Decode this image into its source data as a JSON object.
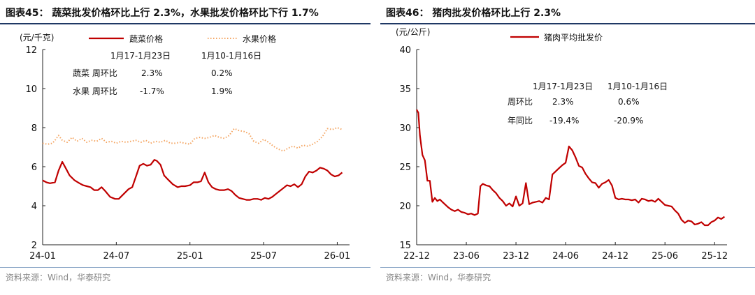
{
  "left": {
    "figure_title": "图表45： 蔬菜批发价格环比上行 2.3%，水果批发价格环比下行 1.7%",
    "source": "资料来源：Wind，华泰研究",
    "chart_data": {
      "type": "line",
      "title": "",
      "ylabel": "(元/千克)",
      "ylim": [
        2,
        12
      ],
      "yticks": [
        2,
        4,
        6,
        8,
        10,
        12
      ],
      "xlim": [
        0,
        25
      ],
      "xticks": [
        {
          "pos": 0,
          "label": "24-01"
        },
        {
          "pos": 6,
          "label": "24-07"
        },
        {
          "pos": 12,
          "label": "25-01"
        },
        {
          "pos": 18,
          "label": "25-07"
        },
        {
          "pos": 24,
          "label": "26-01"
        }
      ],
      "grid": false,
      "legend": "top",
      "series": [
        {
          "name": "蔬菜价格",
          "style": "solid",
          "color": "#c00000",
          "x": [
            0,
            0.3,
            0.6,
            1.0,
            1.3,
            1.6,
            1.9,
            2.2,
            2.6,
            3.0,
            3.3,
            3.6,
            3.9,
            4.2,
            4.5,
            4.8,
            5.1,
            5.5,
            5.9,
            6.2,
            6.6,
            7.0,
            7.3,
            7.6,
            7.9,
            8.2,
            8.5,
            8.8,
            9.1,
            9.3,
            9.6,
            9.9,
            10.2,
            10.6,
            11.0,
            11.3,
            11.6,
            12.0,
            12.3,
            12.6,
            12.9,
            13.2,
            13.5,
            13.8,
            14.1,
            14.4,
            14.8,
            15.1,
            15.4,
            15.7,
            16.0,
            16.3,
            16.6,
            16.9,
            17.2,
            17.5,
            17.8,
            18.1,
            18.4,
            18.7,
            19.0,
            19.3,
            19.6,
            19.9,
            20.2,
            20.5,
            20.8,
            21.1,
            21.4,
            21.7,
            22.0,
            22.3,
            22.6,
            22.9,
            23.2,
            23.5,
            23.8,
            24.1,
            24.4
          ],
          "values": [
            5.3,
            5.2,
            5.15,
            5.2,
            5.8,
            6.25,
            5.9,
            5.55,
            5.3,
            5.15,
            5.05,
            5.0,
            4.95,
            4.8,
            4.8,
            4.95,
            4.75,
            4.45,
            4.35,
            4.35,
            4.6,
            4.85,
            4.95,
            5.5,
            6.05,
            6.15,
            6.05,
            6.1,
            6.35,
            6.3,
            6.1,
            5.55,
            5.35,
            5.1,
            4.95,
            5.0,
            5.0,
            5.05,
            5.2,
            5.2,
            5.25,
            5.7,
            5.2,
            4.95,
            4.85,
            4.8,
            4.8,
            4.85,
            4.75,
            4.55,
            4.4,
            4.35,
            4.3,
            4.3,
            4.35,
            4.35,
            4.3,
            4.4,
            4.35,
            4.45,
            4.6,
            4.75,
            4.9,
            5.05,
            5.0,
            5.1,
            4.95,
            5.1,
            5.5,
            5.75,
            5.7,
            5.8,
            5.95,
            5.9,
            5.8,
            5.6,
            5.5,
            5.55,
            5.7
          ]
        },
        {
          "name": "水果价格",
          "style": "dotted",
          "color": "#f4a460",
          "x": [
            0,
            0.4,
            0.8,
            1.0,
            1.3,
            1.6,
            2.0,
            2.4,
            2.8,
            3.2,
            3.6,
            4.0,
            4.4,
            4.8,
            5.2,
            5.6,
            6.0,
            6.4,
            6.8,
            7.2,
            7.6,
            8.0,
            8.4,
            8.8,
            9.2,
            9.6,
            10.0,
            10.4,
            10.8,
            11.2,
            11.6,
            12.0,
            12.4,
            12.8,
            13.2,
            13.6,
            14.0,
            14.4,
            14.8,
            15.2,
            15.6,
            16.0,
            16.4,
            16.8,
            17.2,
            17.6,
            18.0,
            18.4,
            18.8,
            19.2,
            19.6,
            20.0,
            20.4,
            20.8,
            21.2,
            21.6,
            22.0,
            22.4,
            22.8,
            23.2,
            23.6,
            24.0,
            24.4
          ],
          "values": [
            7.2,
            7.15,
            7.2,
            7.35,
            7.6,
            7.35,
            7.25,
            7.5,
            7.3,
            7.45,
            7.25,
            7.35,
            7.3,
            7.45,
            7.25,
            7.3,
            7.2,
            7.3,
            7.25,
            7.3,
            7.35,
            7.25,
            7.35,
            7.2,
            7.3,
            7.25,
            7.35,
            7.2,
            7.2,
            7.25,
            7.2,
            7.15,
            7.45,
            7.5,
            7.45,
            7.5,
            7.6,
            7.5,
            7.45,
            7.6,
            7.95,
            7.85,
            7.8,
            7.7,
            7.3,
            7.2,
            7.4,
            7.25,
            7.05,
            6.9,
            6.8,
            6.95,
            7.05,
            6.95,
            7.1,
            7.05,
            7.15,
            7.3,
            7.55,
            7.95,
            7.9,
            8.0,
            7.9
          ]
        }
      ],
      "annotations": {
        "headers": [
          "1月17-1月23日",
          "1月10-1月16日"
        ],
        "rows": [
          {
            "label": "蔬菜 周环比",
            "v1": "2.3%",
            "v2": "0.2%"
          },
          {
            "label": "水果 周环比",
            "v1": "-1.7%",
            "v2": "1.9%"
          }
        ]
      }
    }
  },
  "right": {
    "figure_title": "图表46： 猪肉批发价格环比上行 2.3%",
    "source": "资料来源：Wind，华泰研究",
    "chart_data": {
      "type": "line",
      "title": "",
      "ylabel": "(元/公斤)",
      "ylim": [
        15,
        40
      ],
      "yticks": [
        15,
        20,
        25,
        30,
        35,
        40
      ],
      "xlim": [
        0,
        37.5
      ],
      "xticks": [
        {
          "pos": 0,
          "label": "22-12"
        },
        {
          "pos": 6,
          "label": "23-06"
        },
        {
          "pos": 12,
          "label": "23-12"
        },
        {
          "pos": 18,
          "label": "24-06"
        },
        {
          "pos": 24,
          "label": "24-12"
        },
        {
          "pos": 30,
          "label": "25-06"
        },
        {
          "pos": 36,
          "label": "25-12"
        }
      ],
      "grid": false,
      "legend": "top",
      "series": [
        {
          "name": "猪肉平均批发价",
          "style": "solid",
          "color": "#c00000",
          "x": [
            0,
            0.2,
            0.4,
            0.7,
            1.0,
            1.3,
            1.6,
            1.9,
            2.2,
            2.5,
            2.8,
            3.1,
            3.4,
            3.8,
            4.2,
            4.6,
            5.0,
            5.4,
            5.8,
            6.2,
            6.6,
            7.0,
            7.4,
            7.7,
            8.0,
            8.4,
            8.8,
            9.2,
            9.6,
            10.0,
            10.4,
            10.8,
            11.2,
            11.6,
            12.0,
            12.4,
            12.8,
            13.2,
            13.6,
            14.0,
            14.4,
            14.8,
            15.2,
            15.6,
            16.0,
            16.4,
            16.8,
            17.2,
            17.6,
            18.0,
            18.4,
            18.8,
            19.2,
            19.6,
            20.0,
            20.4,
            20.8,
            21.2,
            21.6,
            22.0,
            22.4,
            22.8,
            23.2,
            23.6,
            24.0,
            24.4,
            24.8,
            25.2,
            25.6,
            26.0,
            26.4,
            26.8,
            27.2,
            27.6,
            28.0,
            28.4,
            28.8,
            29.2,
            29.6,
            30.0,
            30.4,
            30.8,
            31.2,
            31.6,
            32.0,
            32.4,
            32.8,
            33.2,
            33.6,
            34.0,
            34.4,
            34.8,
            35.2,
            35.6,
            36.0,
            36.4,
            36.8,
            37.2
          ],
          "values": [
            32.3,
            31.9,
            29.0,
            26.5,
            25.8,
            23.2,
            23.2,
            20.5,
            21.0,
            20.6,
            20.8,
            20.5,
            20.2,
            19.8,
            19.5,
            19.3,
            19.5,
            19.2,
            19.1,
            18.9,
            19.0,
            18.8,
            19.0,
            22.5,
            22.8,
            22.6,
            22.5,
            22.0,
            21.6,
            21.0,
            20.6,
            20.0,
            20.3,
            19.9,
            21.2,
            20.0,
            20.3,
            22.9,
            20.2,
            20.4,
            20.5,
            20.6,
            20.4,
            21.0,
            20.8,
            24.0,
            24.4,
            24.8,
            25.2,
            25.5,
            27.6,
            27.1,
            26.2,
            25.1,
            24.9,
            24.1,
            23.5,
            23.0,
            22.9,
            22.3,
            22.8,
            23.0,
            23.3,
            22.6,
            21.0,
            20.8,
            20.9,
            20.8,
            20.8,
            20.7,
            20.8,
            20.4,
            20.9,
            20.8,
            20.6,
            20.7,
            20.5,
            20.9,
            20.5,
            20.1,
            20.0,
            19.9,
            19.4,
            19.0,
            18.2,
            17.8,
            18.1,
            18.0,
            17.6,
            17.7,
            17.9,
            17.5,
            17.5,
            17.9,
            18.1,
            18.5,
            18.3,
            18.6
          ]
        }
      ],
      "annotations": {
        "headers": [
          "1月17-1月23日",
          "1月10-1月16日"
        ],
        "rows": [
          {
            "label": "周环比",
            "v1": "2.3%",
            "v2": "0.6%"
          },
          {
            "label": "年同比",
            "v1": "-19.4%",
            "v2": "-20.9%"
          }
        ]
      }
    }
  }
}
